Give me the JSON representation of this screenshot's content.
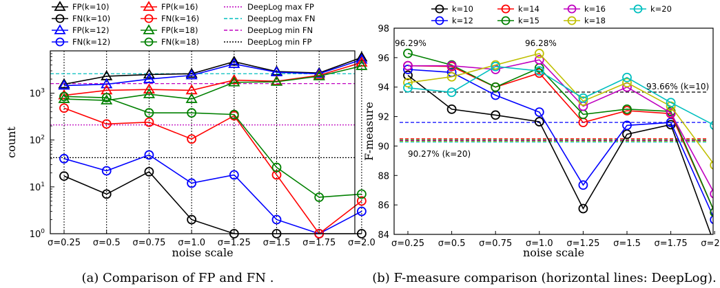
{
  "captions": {
    "left": "(a) Comparison of FP and FN .",
    "right": "(b) F-measure comparison (horizontal lines: DeepLog)."
  },
  "colors": {
    "k10": "#000000",
    "k12": "#0000ff",
    "k14": "#ff0000",
    "k15": "#008000",
    "k16": "#bf00bf",
    "k18": "#bfbf00",
    "k20": "#00bfbf",
    "deeplog": "#bf00bf"
  },
  "chart_data": [
    {
      "type": "line",
      "xlabel": "noise scale",
      "ylabel": "count",
      "yscale": "log",
      "ylim": [
        1,
        8000
      ],
      "categories": [
        "σ=0.25",
        "σ=0.5",
        "σ=0.75",
        "σ=1.0",
        "σ=1.25",
        "σ=1.5",
        "σ=1.75",
        "σ=2.0"
      ],
      "yticks": [
        1,
        10,
        100,
        1000
      ],
      "ytick_labels": [
        "10^0",
        "10^1",
        "10^2",
        "10^3"
      ],
      "grid": "vertical dotted",
      "legend": "top",
      "series": [
        {
          "name": "FP(k=10)",
          "marker": "triangle",
          "color": "#000000",
          "values": [
            1550,
            2300,
            2500,
            2600,
            4700,
            2900,
            2700,
            5800
          ]
        },
        {
          "name": "FN(k=10)",
          "marker": "circle",
          "color": "#000000",
          "values": [
            17,
            7,
            21,
            2,
            1,
            1,
            1,
            1
          ]
        },
        {
          "name": "FP(k=12)",
          "marker": "triangle",
          "color": "#0000ff",
          "values": [
            1450,
            1550,
            2000,
            2400,
            4200,
            2800,
            2600,
            5200
          ]
        },
        {
          "name": "FN(k=12)",
          "marker": "circle",
          "color": "#0000ff",
          "values": [
            40,
            22,
            48,
            12,
            18,
            2,
            1,
            3
          ]
        },
        {
          "name": "FP(k=16)",
          "marker": "triangle",
          "color": "#ff0000",
          "values": [
            900,
            1150,
            1200,
            1150,
            1900,
            1800,
            2400,
            4500
          ]
        },
        {
          "name": "FN(k=16)",
          "marker": "circle",
          "color": "#ff0000",
          "values": [
            480,
            220,
            240,
            105,
            330,
            18,
            1,
            5
          ]
        },
        {
          "name": "FP(k=18)",
          "marker": "triangle",
          "color": "#008000",
          "values": [
            750,
            700,
            950,
            750,
            1700,
            1750,
            2300,
            3800
          ]
        },
        {
          "name": "FN(k=18)",
          "marker": "circle",
          "color": "#008000",
          "values": [
            850,
            800,
            380,
            380,
            350,
            26,
            6,
            7
          ]
        }
      ],
      "hlines": [
        {
          "name": "DeepLog max FP",
          "style": "dotted",
          "color": "#bf00bf",
          "value": 210
        },
        {
          "name": "DeepLog max FN",
          "style": "dashed",
          "color": "#00bfbf",
          "value": 2600
        },
        {
          "name": "DeepLog min FN",
          "style": "dashed",
          "color": "#bf00bf",
          "value": 1600
        },
        {
          "name": "DeepLog min FP",
          "style": "dotted",
          "color": "#000000",
          "value": 42
        }
      ]
    },
    {
      "type": "line",
      "xlabel": "noise scale",
      "ylabel": "F-measure",
      "ylim": [
        84,
        98
      ],
      "categories": [
        "σ=0.25",
        "σ=0.5",
        "σ=0.75",
        "σ=1.0",
        "σ=1.25",
        "σ=1.5",
        "σ=1.75",
        "σ=2.0"
      ],
      "yticks": [
        84,
        86,
        88,
        90,
        92,
        94,
        96,
        98
      ],
      "legend": "top",
      "series": [
        {
          "name": "k=10",
          "color": "#000000",
          "values": [
            94.8,
            92.5,
            92.1,
            91.65,
            85.75,
            90.8,
            91.45,
            83.3
          ]
        },
        {
          "name": "k=12",
          "color": "#0000ff",
          "values": [
            95.2,
            95.0,
            93.45,
            92.3,
            87.35,
            91.4,
            91.6,
            85.0
          ]
        },
        {
          "name": "k=14",
          "color": "#ff0000",
          "values": [
            95.45,
            95.4,
            94.0,
            94.95,
            91.6,
            92.4,
            92.2,
            85.5
          ]
        },
        {
          "name": "k=15",
          "color": "#008000",
          "values": [
            96.29,
            95.5,
            94.0,
            95.3,
            92.15,
            92.5,
            92.35,
            85.5
          ]
        },
        {
          "name": "k=16",
          "color": "#bf00bf",
          "values": [
            95.45,
            95.45,
            95.2,
            95.85,
            92.7,
            94.0,
            92.25,
            86.75
          ]
        },
        {
          "name": "k=18",
          "color": "#bfbf00",
          "values": [
            94.3,
            94.7,
            95.5,
            96.28,
            93.05,
            94.3,
            92.7,
            88.7
          ]
        },
        {
          "name": "k=20",
          "color": "#00bfbf",
          "values": [
            93.95,
            93.65,
            95.4,
            95.1,
            93.25,
            94.65,
            92.95,
            91.4
          ]
        }
      ],
      "hlines": [
        {
          "color": "#000000",
          "value": 93.66,
          "style": "dashed"
        },
        {
          "color": "#0000ff",
          "value": 91.6,
          "style": "dashed"
        },
        {
          "color": "#ff0000",
          "value": 90.5,
          "style": "dashed"
        },
        {
          "color": "#008000",
          "value": 90.42,
          "style": "dashed"
        },
        {
          "color": "#bf00bf",
          "value": 90.37,
          "style": "dashed"
        },
        {
          "color": "#bfbf00",
          "value": 90.32,
          "style": "dashed"
        },
        {
          "color": "#00bfbf",
          "value": 90.27,
          "style": "dashed"
        }
      ],
      "annotations": [
        {
          "text": "96.29%",
          "x": 0,
          "y": 96.29
        },
        {
          "text": "96.28%",
          "x": 3,
          "y": 96.28
        },
        {
          "text": "93.66% (k=10)",
          "x": 6.5,
          "y": 93.66
        },
        {
          "text": "90.27% (k=20)",
          "x": 0.6,
          "y": 90.27
        }
      ]
    }
  ]
}
